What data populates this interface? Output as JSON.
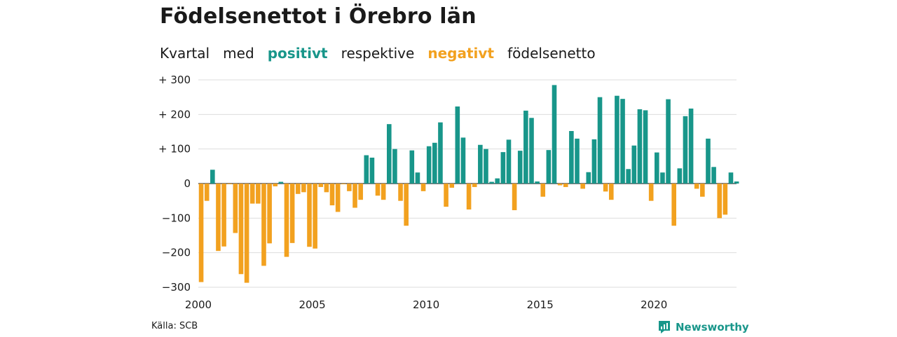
{
  "title": "Födelsenettot i Örebro län",
  "subtitle": {
    "part1": "Kvartal",
    "part2": "med",
    "positive": "positivt",
    "part3": "respektive",
    "negative": "negativt",
    "part4": "födelsenetto"
  },
  "source": "Källa: SCB",
  "brand": "Newsworthy",
  "colors": {
    "positive": "#18968a",
    "negative": "#f2a11f",
    "grid": "#dddddd",
    "axis": "#333333"
  },
  "chart_data": {
    "type": "bar",
    "x_start": "2000 Q1",
    "ylim": [
      -300,
      300
    ],
    "y_ticks": [
      300,
      200,
      100,
      0,
      -100,
      -200,
      -300
    ],
    "y_tick_labels": [
      "+ 300",
      "+ 200",
      "+ 100",
      "0",
      "−100",
      "−200",
      "−300"
    ],
    "x_tick_labels": [
      "2000",
      "2005",
      "2010",
      "2015",
      "2020"
    ],
    "x_tick_years": [
      2000,
      2005,
      2010,
      2015,
      2020
    ],
    "grid": "horizontal",
    "values": [
      -285,
      -50,
      40,
      -195,
      -182,
      -2,
      -143,
      -262,
      -287,
      -58,
      -58,
      -238,
      -173,
      -8,
      5,
      -212,
      -172,
      -30,
      -25,
      -183,
      -188,
      -10,
      -25,
      -63,
      -82,
      -2,
      -22,
      -70,
      -47,
      82,
      75,
      -35,
      -47,
      172,
      100,
      -50,
      -122,
      96,
      32,
      -22,
      108,
      118,
      177,
      -67,
      -12,
      223,
      133,
      -75,
      -10,
      112,
      100,
      5,
      15,
      91,
      127,
      -77,
      95,
      211,
      190,
      6,
      -38,
      97,
      285,
      -5,
      -10,
      152,
      130,
      -15,
      33,
      128,
      250,
      -23,
      -47,
      254,
      245,
      42,
      110,
      215,
      212,
      -50,
      90,
      32,
      244,
      -122,
      44,
      195,
      217,
      -15,
      -38,
      130,
      48,
      -100,
      -90,
      32,
      6
    ]
  }
}
